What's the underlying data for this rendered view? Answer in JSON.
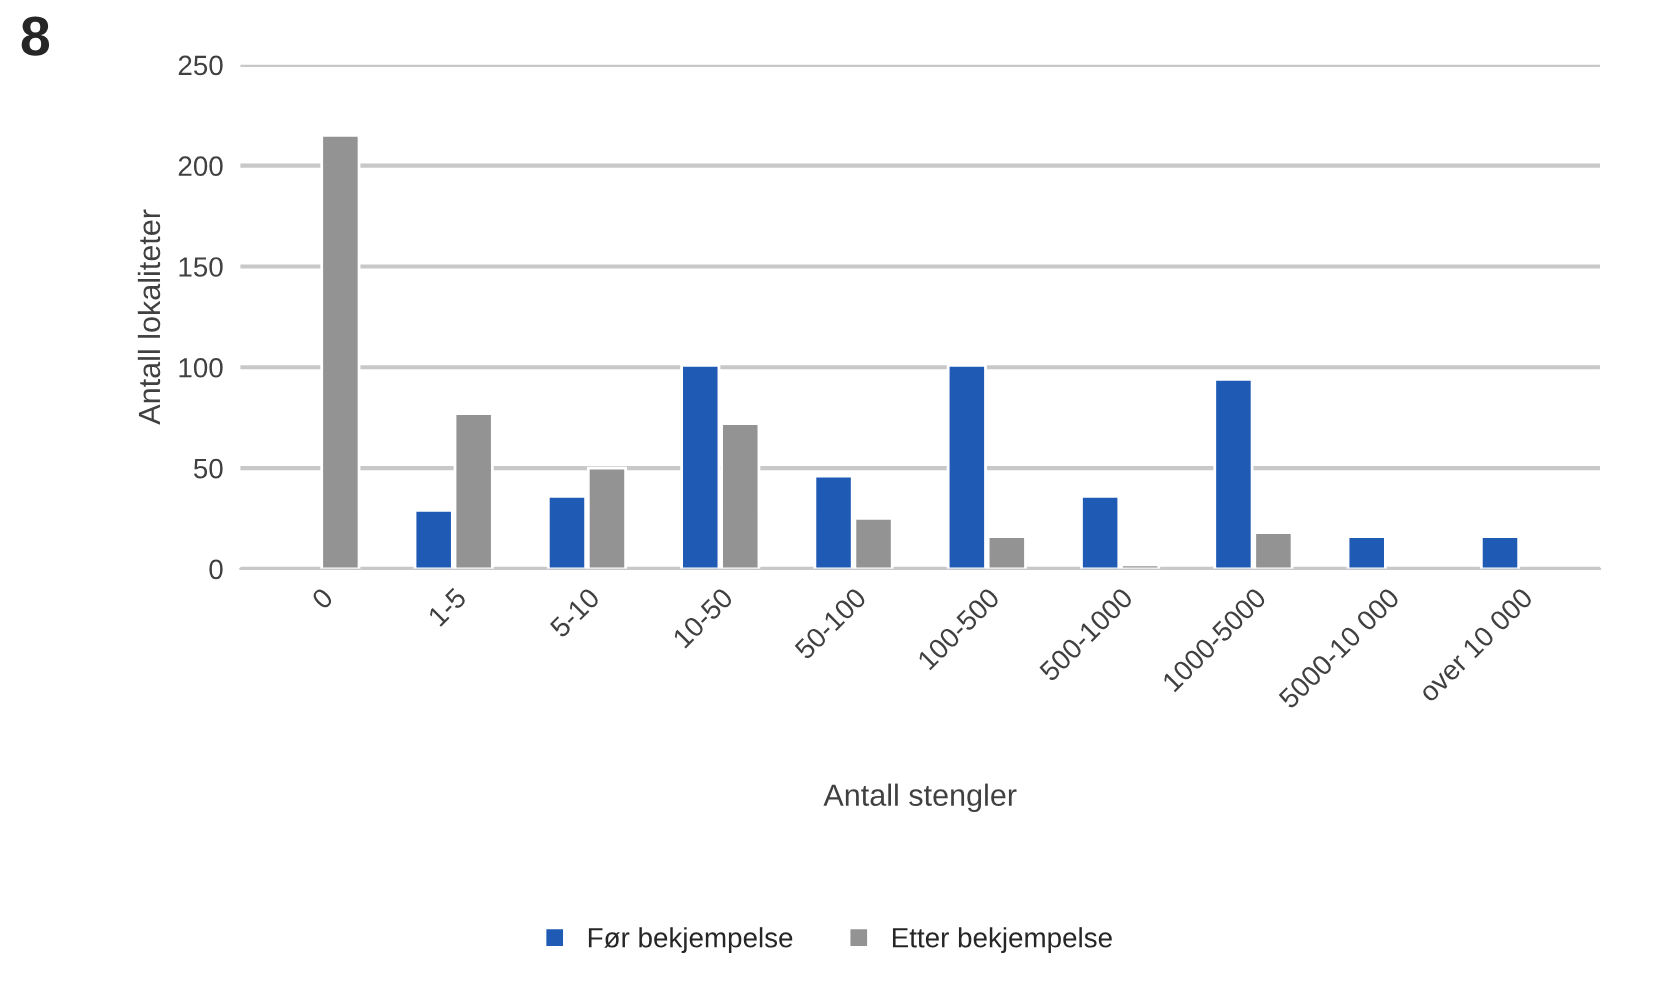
{
  "chart_data": {
    "type": "bar",
    "xlabel": "Antall stengler",
    "ylabel": "Antall lokaliteter",
    "annotations": [
      "8"
    ],
    "categories": [
      "0",
      "1-5",
      "5-10",
      "10-50",
      "50-100",
      "100-500",
      "500-1000",
      "1000-5000",
      "5000-10 000",
      "over 10 000"
    ],
    "series": [
      {
        "name": "Før bekjempelse",
        "color": "#1f5bb5",
        "values": [
          null,
          29,
          36,
          101,
          46,
          101,
          36,
          94,
          16,
          16
        ]
      },
      {
        "name": "Etter bekjempelse",
        "color": "#939393",
        "values": [
          215,
          77,
          50,
          72,
          25,
          16,
          2,
          18,
          null,
          null
        ]
      }
    ],
    "ylim": [
      0,
      250
    ],
    "yticks": [
      0,
      50,
      100,
      150,
      200,
      250
    ],
    "grid": "y",
    "legend": "bottom"
  }
}
